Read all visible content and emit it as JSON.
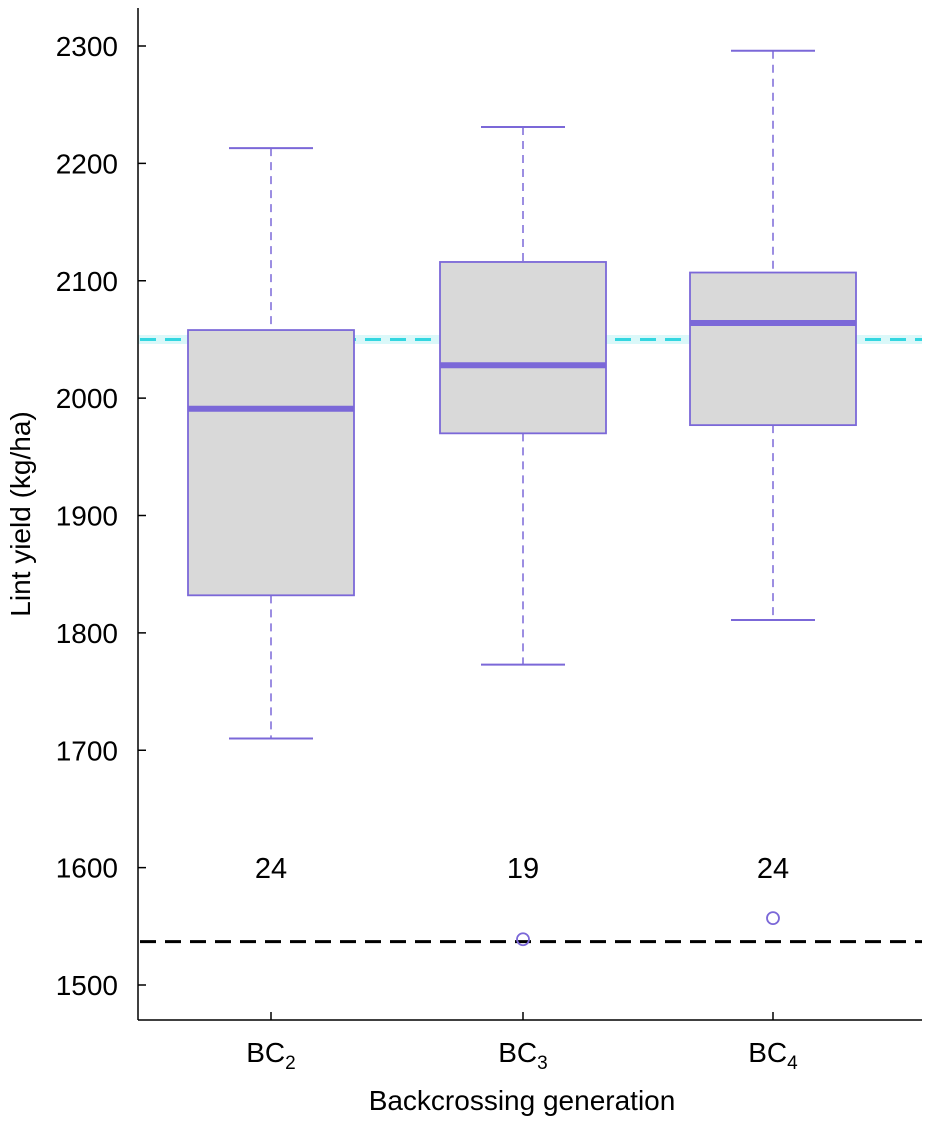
{
  "chart_data": {
    "type": "box",
    "xlabel": "Backcrossing generation",
    "ylabel": "Lint yield (kg/ha)",
    "ylim": [
      1465,
      2335
    ],
    "yticks": [
      1500,
      1600,
      1700,
      1800,
      1900,
      2000,
      2100,
      2200,
      2300
    ],
    "grid": false,
    "colors": {
      "box_fill": "#d9d9d9",
      "box_stroke": "#7b68d8",
      "median": "#7b68d8",
      "upper_reference": "#33d6e0",
      "lower_reference": "#000000"
    },
    "reference_lines": [
      {
        "y": 2050,
        "color": "#33d6e0",
        "style": "dashed"
      },
      {
        "y": 1537,
        "color": "#000000",
        "style": "dashed"
      }
    ],
    "groups": [
      {
        "label": "BC",
        "subscript": "2",
        "n": "24",
        "whisker_low": 1710,
        "q1": 1832,
        "median": 1991,
        "q3": 2058,
        "whisker_high": 2213,
        "outliers": []
      },
      {
        "label": "BC",
        "subscript": "3",
        "n": "19",
        "whisker_low": 1773,
        "q1": 1970,
        "median": 2028,
        "q3": 2116,
        "whisker_high": 2231,
        "outliers": [
          1539
        ]
      },
      {
        "label": "BC",
        "subscript": "4",
        "n": "24",
        "whisker_low": 1811,
        "q1": 1977,
        "median": 2064,
        "q3": 2107,
        "whisker_high": 2296,
        "outliers": [
          1557
        ]
      }
    ]
  }
}
